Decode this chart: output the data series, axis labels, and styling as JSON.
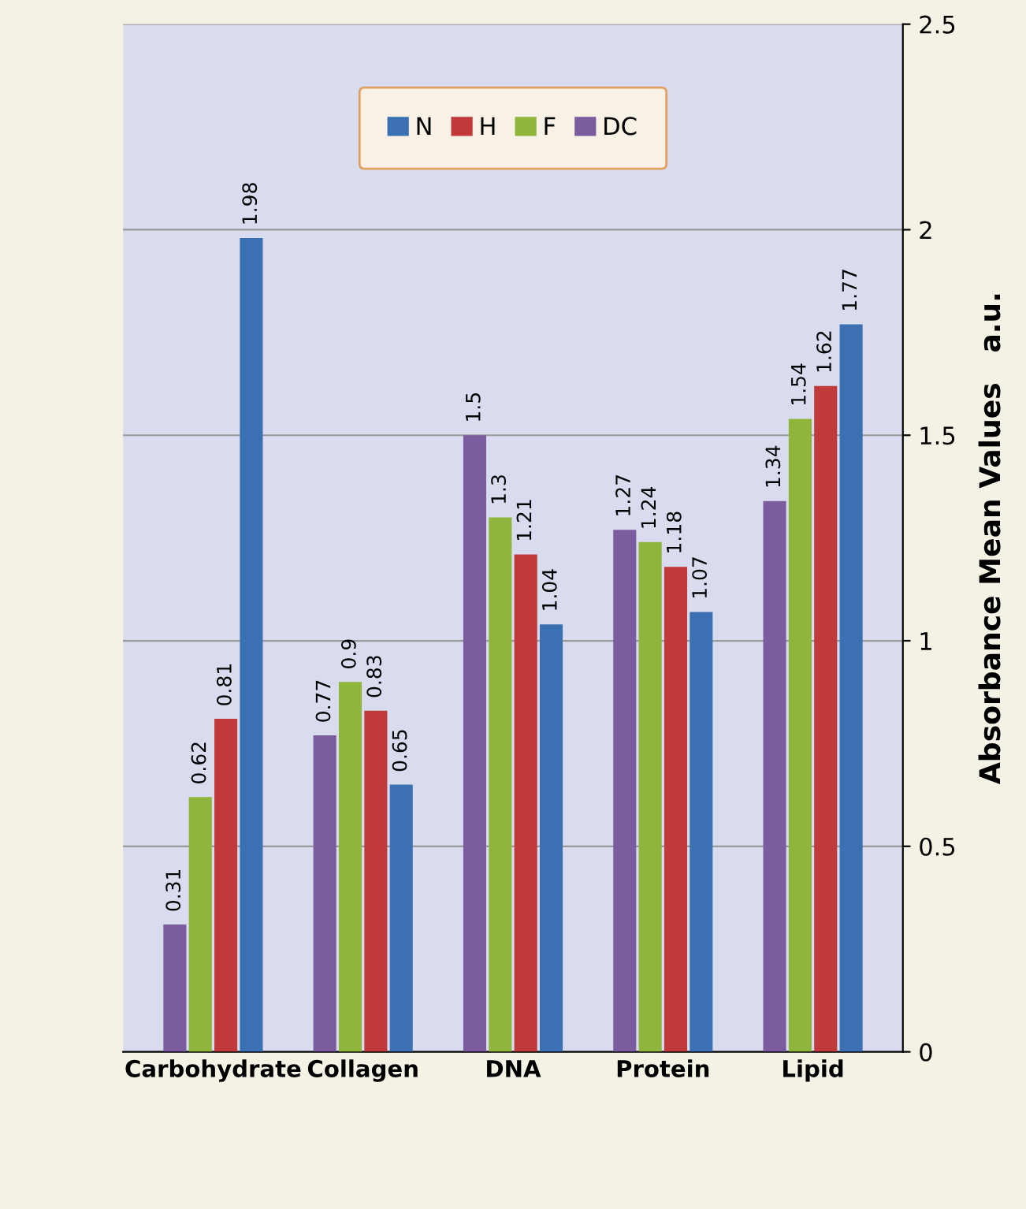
{
  "chart_data": {
    "type": "bar",
    "ylabel": "Absorbance Mean Values   a.u.",
    "categories": [
      "Carbohydrate",
      "Collagen",
      "DNA",
      "Protein",
      "Lipid"
    ],
    "series": [
      {
        "name": "DC",
        "color": "#7b5c9e",
        "values": [
          0.31,
          0.77,
          1.5,
          1.27,
          1.34
        ]
      },
      {
        "name": "F",
        "color": "#8fb53c",
        "values": [
          0.62,
          0.9,
          1.3,
          1.24,
          1.54
        ]
      },
      {
        "name": "H",
        "color": "#c0393b",
        "values": [
          0.81,
          0.83,
          1.21,
          1.18,
          1.62
        ]
      },
      {
        "name": "N",
        "color": "#3b70b2",
        "values": [
          1.98,
          0.65,
          1.04,
          1.07,
          1.77
        ]
      }
    ],
    "ylim": [
      0,
      2.5
    ],
    "yticks": [
      0,
      0.5,
      1,
      1.5,
      2,
      2.5
    ],
    "grid": "y",
    "legend": "top",
    "data_labels": true
  }
}
